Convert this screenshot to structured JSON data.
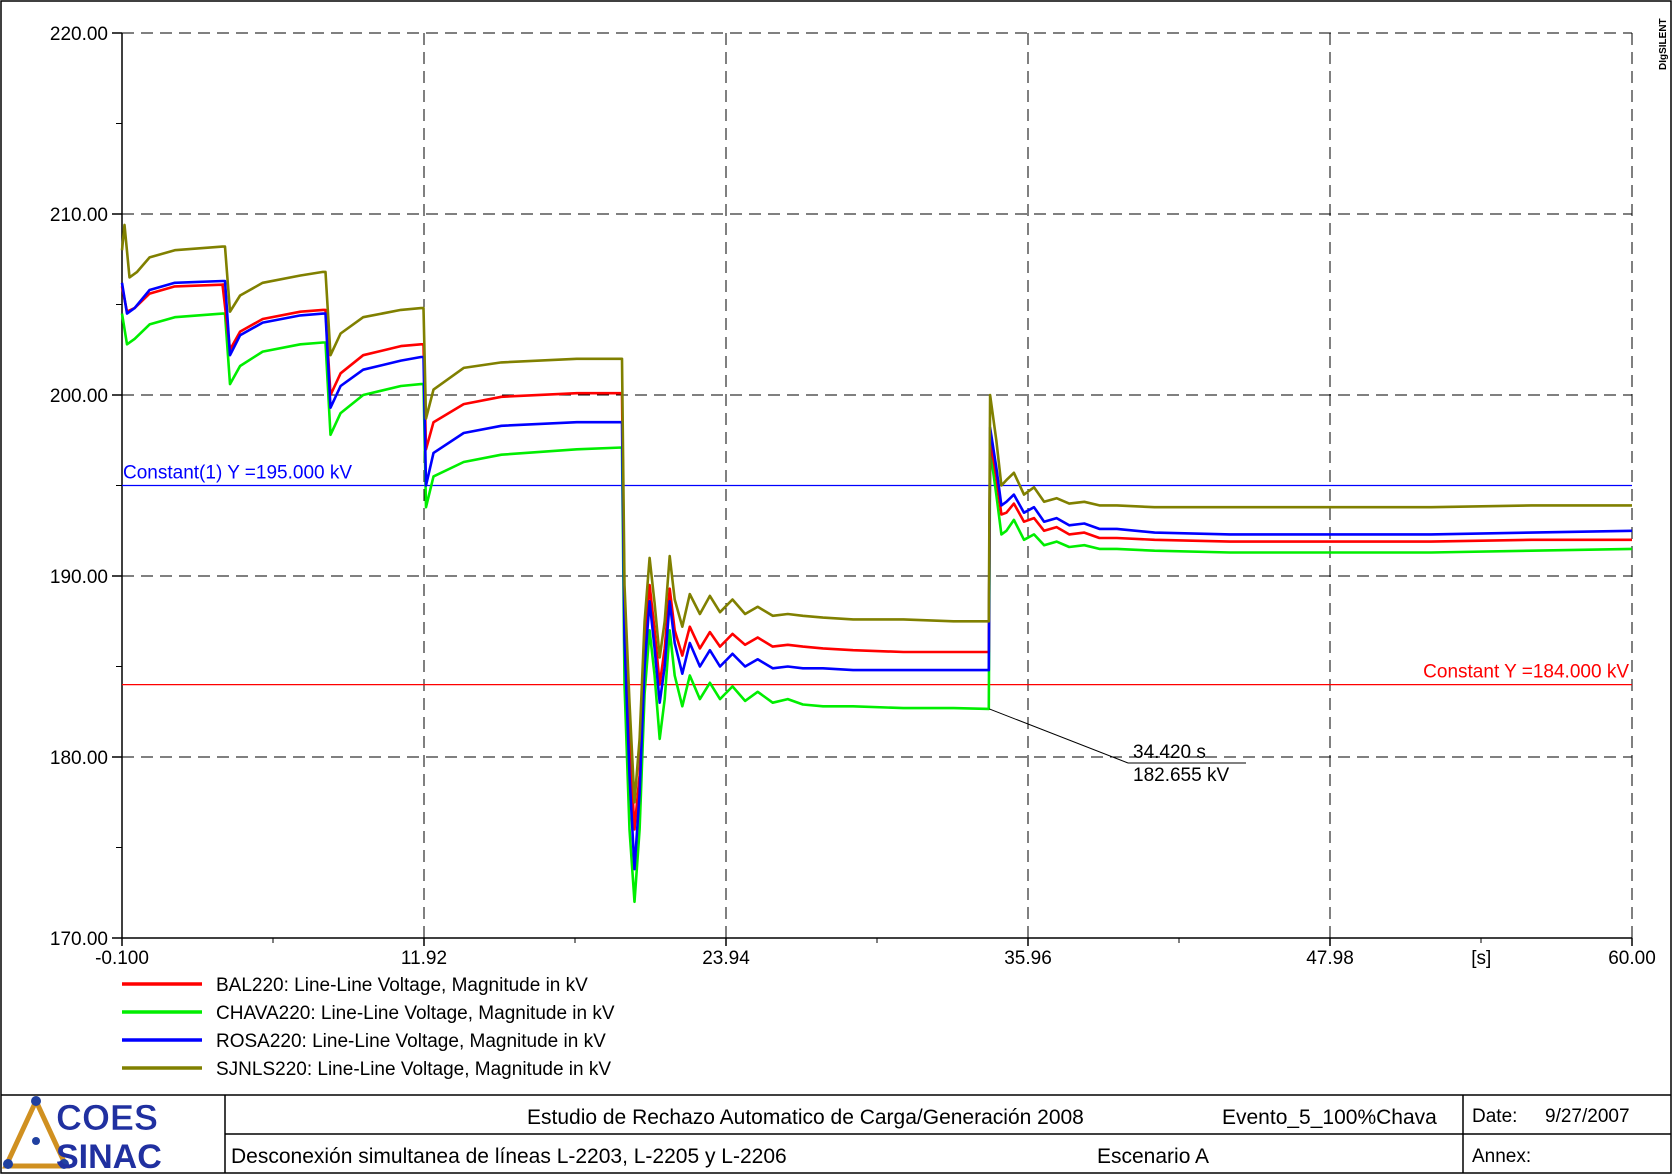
{
  "watermark": "DIgSILENT",
  "chart_data": {
    "type": "line",
    "xlim": [
      -0.1,
      60.0
    ],
    "ylim": [
      170.0,
      220.0
    ],
    "x_ticks": [
      "-0.100",
      "11.92",
      "23.94",
      "35.96",
      "47.98",
      "60.00"
    ],
    "x_unit": "[s]",
    "y_ticks": [
      "170.00",
      "180.00",
      "190.00",
      "200.00",
      "210.00",
      "220.00"
    ],
    "grid": true,
    "legend_position": "bottom-left",
    "series": [
      {
        "name": "BAL220: Line-Line Voltage, Magnitude in kV",
        "color": "#ff0000",
        "x": [
          -0.1,
          0.1,
          0.4,
          1.0,
          2.0,
          4.0,
          3.9,
          4.2,
          4.6,
          5.5,
          7.0,
          7.9,
          8.0,
          8.2,
          8.6,
          9.5,
          11.0,
          11.8,
          11.9,
          12.0,
          12.3,
          13.5,
          15.0,
          18.0,
          19.8,
          19.9,
          20.1,
          20.3,
          20.5,
          20.7,
          20.9,
          21.1,
          21.3,
          21.5,
          21.7,
          21.9,
          22.2,
          22.5,
          22.9,
          23.3,
          23.7,
          24.2,
          24.7,
          25.2,
          25.8,
          26.4,
          27.0,
          27.8,
          29.0,
          31.0,
          33.0,
          34.4,
          34.45,
          34.7,
          34.9,
          35.1,
          35.4,
          35.8,
          36.2,
          36.6,
          37.1,
          37.6,
          38.2,
          38.8,
          39.5,
          41.0,
          44.0,
          48.0,
          52.0,
          56.0,
          60.0
        ],
        "y": [
          206.0,
          204.6,
          204.8,
          205.6,
          206.0,
          206.1,
          206.1,
          202.5,
          203.5,
          204.2,
          204.6,
          204.7,
          204.7,
          200.0,
          201.2,
          202.2,
          202.7,
          202.8,
          202.8,
          197.0,
          198.5,
          199.5,
          199.9,
          200.1,
          200.1,
          188.0,
          181.0,
          176.0,
          179.0,
          186.0,
          189.5,
          187.0,
          184.0,
          186.0,
          189.3,
          187.0,
          185.6,
          187.2,
          186.0,
          186.9,
          186.1,
          186.8,
          186.2,
          186.6,
          186.1,
          186.2,
          186.1,
          186.0,
          185.9,
          185.8,
          185.8,
          185.8,
          197.5,
          195.5,
          193.4,
          193.5,
          194.0,
          193.0,
          193.2,
          192.5,
          192.7,
          192.3,
          192.4,
          192.1,
          192.1,
          192.0,
          191.9,
          191.9,
          191.9,
          192.0,
          192.0
        ]
      },
      {
        "name": "CHAVA220: Line-Line Voltage, Magnitude in kV",
        "color": "#00ee00",
        "x": [
          -0.1,
          0.1,
          0.4,
          1.0,
          2.0,
          3.9,
          4.0,
          4.2,
          4.6,
          5.5,
          7.0,
          7.9,
          8.0,
          8.2,
          8.6,
          9.5,
          11.0,
          11.8,
          11.9,
          12.0,
          12.3,
          13.5,
          15.0,
          18.0,
          19.8,
          19.9,
          20.1,
          20.3,
          20.5,
          20.7,
          20.9,
          21.1,
          21.3,
          21.5,
          21.7,
          21.9,
          22.2,
          22.5,
          22.9,
          23.3,
          23.7,
          24.2,
          24.7,
          25.2,
          25.8,
          26.4,
          27.0,
          27.8,
          29.0,
          31.0,
          33.0,
          34.4,
          34.45,
          34.7,
          34.9,
          35.1,
          35.4,
          35.8,
          36.2,
          36.6,
          37.1,
          37.6,
          38.2,
          38.8,
          39.5,
          41.0,
          44.0,
          48.0,
          52.0,
          56.0,
          60.0
        ],
        "y": [
          204.5,
          202.8,
          203.1,
          203.9,
          204.3,
          204.5,
          204.5,
          200.6,
          201.6,
          202.4,
          202.8,
          202.9,
          202.9,
          197.8,
          199.0,
          200.0,
          200.5,
          200.6,
          200.6,
          193.8,
          195.5,
          196.3,
          196.7,
          197.0,
          197.1,
          184.0,
          176.0,
          172.0,
          176.0,
          183.5,
          187.0,
          184.5,
          181.0,
          183.2,
          187.0,
          184.5,
          182.8,
          184.5,
          183.2,
          184.1,
          183.2,
          183.9,
          183.1,
          183.6,
          183.0,
          183.2,
          182.9,
          182.8,
          182.8,
          182.7,
          182.7,
          182.655,
          197.0,
          194.5,
          192.3,
          192.5,
          193.1,
          192.0,
          192.3,
          191.7,
          191.9,
          191.6,
          191.7,
          191.5,
          191.5,
          191.4,
          191.3,
          191.3,
          191.3,
          191.4,
          191.5
        ]
      },
      {
        "name": "ROSA220: Line-Line Voltage, Magnitude in kV",
        "color": "#0000ff",
        "x": [
          -0.1,
          0.1,
          0.4,
          1.0,
          2.0,
          3.9,
          4.0,
          4.2,
          4.6,
          5.5,
          7.0,
          7.9,
          8.0,
          8.2,
          8.6,
          9.5,
          11.0,
          11.8,
          11.9,
          12.0,
          12.3,
          13.5,
          15.0,
          18.0,
          19.8,
          19.9,
          20.1,
          20.3,
          20.5,
          20.7,
          20.9,
          21.1,
          21.3,
          21.5,
          21.7,
          21.9,
          22.2,
          22.5,
          22.9,
          23.3,
          23.7,
          24.2,
          24.7,
          25.2,
          25.8,
          26.4,
          27.0,
          27.8,
          29.0,
          31.0,
          33.0,
          34.4,
          34.45,
          34.7,
          34.9,
          35.1,
          35.4,
          35.8,
          36.2,
          36.6,
          37.1,
          37.6,
          38.2,
          38.8,
          39.5,
          41.0,
          44.0,
          48.0,
          52.0,
          56.0,
          60.0
        ],
        "y": [
          206.2,
          204.5,
          204.8,
          205.8,
          206.2,
          206.3,
          206.3,
          202.2,
          203.3,
          204.0,
          204.4,
          204.5,
          204.5,
          199.3,
          200.5,
          201.4,
          201.9,
          202.1,
          202.1,
          195.0,
          196.8,
          197.9,
          198.3,
          198.5,
          198.5,
          186.5,
          179.0,
          173.8,
          178.0,
          185.0,
          188.6,
          186.0,
          183.0,
          185.0,
          188.6,
          186.3,
          184.6,
          186.3,
          185.0,
          185.9,
          185.0,
          185.7,
          185.0,
          185.4,
          184.9,
          185.0,
          184.9,
          184.9,
          184.8,
          184.8,
          184.8,
          184.8,
          198.2,
          196.0,
          193.9,
          194.1,
          194.5,
          193.5,
          193.8,
          193.0,
          193.2,
          192.8,
          192.9,
          192.6,
          192.6,
          192.4,
          192.3,
          192.3,
          192.3,
          192.4,
          192.5
        ]
      },
      {
        "name": "SJNLS220: Line-Line Voltage, Magnitude in kV",
        "color": "#808000",
        "x": [
          -0.1,
          0.0,
          0.2,
          0.5,
          1.0,
          2.0,
          3.9,
          4.0,
          4.2,
          4.6,
          5.5,
          7.0,
          7.9,
          8.0,
          8.2,
          8.6,
          9.5,
          11.0,
          11.8,
          11.9,
          12.0,
          12.3,
          13.5,
          15.0,
          18.0,
          19.8,
          19.9,
          20.1,
          20.3,
          20.5,
          20.7,
          20.9,
          21.1,
          21.3,
          21.5,
          21.7,
          21.9,
          22.2,
          22.5,
          22.9,
          23.3,
          23.7,
          24.2,
          24.7,
          25.2,
          25.8,
          26.4,
          27.0,
          27.8,
          29.0,
          31.0,
          33.0,
          34.4,
          34.45,
          34.7,
          34.9,
          35.1,
          35.4,
          35.8,
          36.2,
          36.6,
          37.1,
          37.6,
          38.2,
          38.8,
          39.5,
          41.0,
          44.0,
          48.0,
          52.0,
          56.0,
          60.0
        ],
        "y": [
          208.0,
          209.4,
          206.5,
          206.8,
          207.6,
          208.0,
          208.2,
          208.2,
          204.6,
          205.5,
          206.2,
          206.6,
          206.8,
          206.8,
          202.2,
          203.4,
          204.3,
          204.7,
          204.8,
          204.8,
          198.7,
          200.3,
          201.5,
          201.8,
          202.0,
          202.0,
          189.5,
          183.0,
          177.5,
          181.0,
          187.5,
          191.0,
          188.5,
          185.5,
          187.5,
          191.1,
          188.7,
          187.2,
          189.0,
          187.9,
          188.9,
          188.0,
          188.7,
          187.9,
          188.3,
          187.8,
          187.9,
          187.8,
          187.7,
          187.6,
          187.6,
          187.5,
          187.5,
          200.0,
          197.5,
          195.0,
          195.3,
          195.7,
          194.5,
          194.9,
          194.1,
          194.3,
          194.0,
          194.1,
          193.9,
          193.9,
          193.8,
          193.8,
          193.8,
          193.8,
          193.9,
          193.9
        ]
      }
    ],
    "constants": [
      {
        "label": "Constant(1) Y =195.000 kV",
        "y": 195.0,
        "color": "#0000ff"
      },
      {
        "label": "Constant Y =184.000 kV",
        "y": 184.0,
        "color": "#ff0000"
      }
    ],
    "annotation": {
      "x": 34.42,
      "y": 182.655,
      "line1": "34.420 s",
      "line2": "182.655 kV"
    }
  },
  "footer": {
    "logo_top": "COES",
    "logo_bottom": "SINAC",
    "study_title": "Estudio de Rechazo Automatico de Carga/Generación 2008",
    "event": "Evento_5_100%Chava",
    "description": "Desconexión simultanea de líneas L-2203, L-2205 y L-2206",
    "scenario": "Escenario A",
    "date_label": "Date:",
    "date_value": "9/27/2007",
    "annex_label": "Annex:"
  }
}
